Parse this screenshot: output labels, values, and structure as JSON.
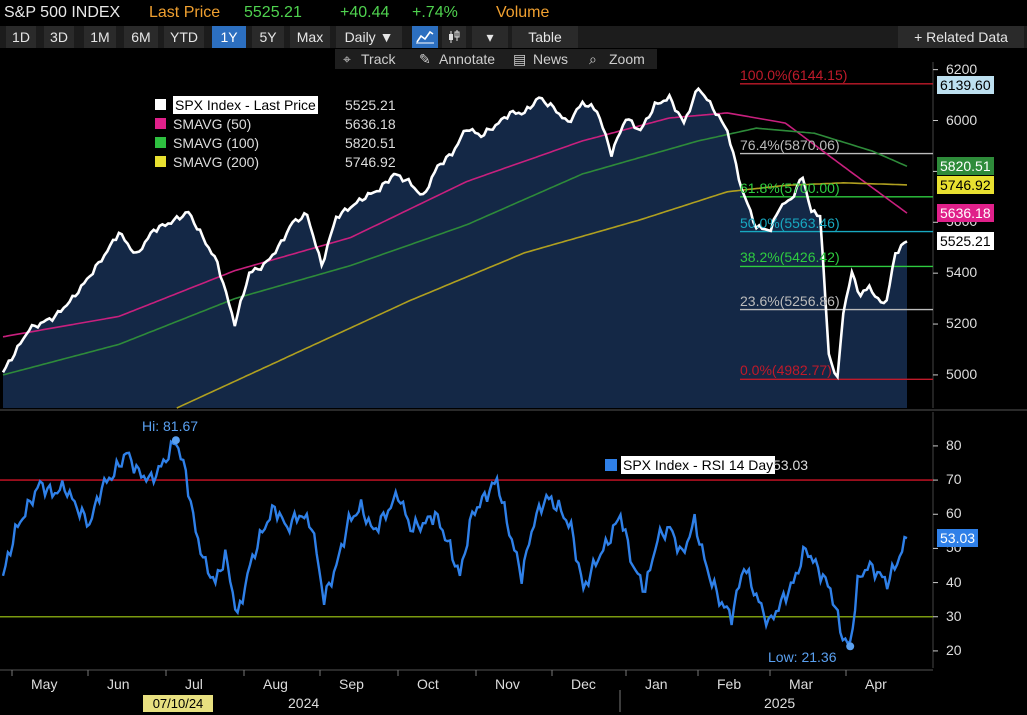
{
  "header": {
    "ticker": "S&P 500 INDEX",
    "last_price_label": "Last Price",
    "last_price": "5525.21",
    "change": "+40.44",
    "change_pct": "+.74%",
    "volume_label": "Volume"
  },
  "range_tabs": [
    "1D",
    "3D",
    "1M",
    "6M",
    "YTD",
    "1Y",
    "5Y",
    "Max"
  ],
  "active_range": "1Y",
  "toolbar": {
    "periodicity": "Daily ▼",
    "table": "Table",
    "related": "+ Related Data",
    "track": "Track",
    "annotate": "Annotate",
    "news": "News",
    "zoom": "Zoom"
  },
  "colors": {
    "price": "#ffffff",
    "area": "#142846",
    "sma50": "#c8207e",
    "sma100": "#2e8b3a",
    "sma200": "#b0a020",
    "rsi": "#2f80e8",
    "fib_red": "#c01a2a",
    "fib_green": "#2ecc40",
    "fib_cyan": "#18a8c0",
    "fib_gray": "#bbbbbb",
    "rsi_70": "#b01020",
    "rsi_30": "#7a9a10"
  },
  "chart_data": [
    {
      "type": "line",
      "title": "S&P 500 INDEX",
      "ylim": [
        4870,
        6230
      ],
      "yticks": [
        5000,
        5200,
        5400,
        5600,
        5800,
        6000,
        6200
      ],
      "series": [
        {
          "name": "SPX Index - Last Price",
          "legend_value": "5525.21",
          "color": "#ffffff",
          "anchors": [
            [
              0,
              5010
            ],
            [
              9,
              5180
            ],
            [
              18,
              5230
            ],
            [
              24,
              5300
            ],
            [
              30,
              5390
            ],
            [
              35,
              5470
            ],
            [
              40,
              5560
            ],
            [
              46,
              5470
            ],
            [
              52,
              5570
            ],
            [
              58,
              5600
            ],
            [
              64,
              5640
            ],
            [
              69,
              5540
            ],
            [
              74,
              5440
            ],
            [
              80,
              5200
            ],
            [
              85,
              5400
            ],
            [
              90,
              5430
            ],
            [
              95,
              5500
            ],
            [
              100,
              5600
            ],
            [
              105,
              5630
            ],
            [
              110,
              5430
            ],
            [
              115,
              5620
            ],
            [
              120,
              5660
            ],
            [
              125,
              5700
            ],
            [
              130,
              5730
            ],
            [
              135,
              5790
            ],
            [
              140,
              5760
            ],
            [
              145,
              5700
            ],
            [
              150,
              5820
            ],
            [
              155,
              5870
            ],
            [
              160,
              5970
            ],
            [
              165,
              5940
            ],
            [
              170,
              5980
            ],
            [
              175,
              6030
            ],
            [
              180,
              6030
            ],
            [
              185,
              6090
            ],
            [
              190,
              6050
            ],
            [
              195,
              5990
            ],
            [
              200,
              6070
            ],
            [
              205,
              6040
            ],
            [
              210,
              5870
            ],
            [
              215,
              6010
            ],
            [
              220,
              5960
            ],
            [
              225,
              6060
            ],
            [
              230,
              6090
            ],
            [
              235,
              5990
            ],
            [
              240,
              6130
            ],
            [
              245,
              6050
            ],
            [
              250,
              5960
            ],
            [
              255,
              5730
            ],
            [
              260,
              5580
            ],
            [
              265,
              5570
            ],
            [
              268,
              5660
            ],
            [
              272,
              5690
            ],
            [
              276,
              5780
            ],
            [
              279,
              5640
            ],
            [
              282,
              5630
            ],
            [
              285,
              5080
            ],
            [
              288,
              4982
            ],
            [
              290,
              5250
            ],
            [
              293,
              5400
            ],
            [
              296,
              5310
            ],
            [
              299,
              5350
            ],
            [
              302,
              5290
            ],
            [
              305,
              5290
            ],
            [
              308,
              5480
            ],
            [
              312,
              5525
            ]
          ]
        },
        {
          "name": "SMAVG (50)",
          "legend_value": "5636.18",
          "color": "#c8207e",
          "anchors": [
            [
              0,
              5150
            ],
            [
              40,
              5230
            ],
            [
              80,
              5410
            ],
            [
              120,
              5540
            ],
            [
              160,
              5760
            ],
            [
              200,
              5920
            ],
            [
              230,
              6010
            ],
            [
              250,
              6030
            ],
            [
              270,
              5990
            ],
            [
              290,
              5820
            ],
            [
              312,
              5636
            ]
          ]
        },
        {
          "name": "SMAVG (100)",
          "legend_value": "5820.51",
          "color": "#2e8b3a",
          "anchors": [
            [
              0,
              5000
            ],
            [
              40,
              5120
            ],
            [
              80,
              5300
            ],
            [
              120,
              5430
            ],
            [
              160,
              5590
            ],
            [
              200,
              5790
            ],
            [
              240,
              5920
            ],
            [
              260,
              5970
            ],
            [
              280,
              5950
            ],
            [
              300,
              5880
            ],
            [
              312,
              5820
            ]
          ]
        },
        {
          "name": "SMAVG (200)",
          "legend_value": "5746.92",
          "color": "#b0a020",
          "anchors": [
            [
              60,
              4870
            ],
            [
              100,
              5080
            ],
            [
              140,
              5290
            ],
            [
              180,
              5480
            ],
            [
              220,
              5610
            ],
            [
              250,
              5720
            ],
            [
              270,
              5745
            ],
            [
              290,
              5755
            ],
            [
              312,
              5747
            ]
          ]
        }
      ],
      "fibonacci": [
        {
          "label": "100.0%(6144.15)",
          "value": 6144.15,
          "color": "#c01a2a"
        },
        {
          "label": "76.4%(5870.06)",
          "value": 5870.06,
          "color": "#bbbbbb"
        },
        {
          "label": "61.8%(5700.00)",
          "value": 5700.0,
          "color": "#2ecc40"
        },
        {
          "label": "50.0%(5563.46)",
          "value": 5563.46,
          "color": "#18a8c0"
        },
        {
          "label": "38.2%(5426.42)",
          "value": 5426.42,
          "color": "#2ecc40"
        },
        {
          "label": "23.6%(5256.86)",
          "value": 5256.86,
          "color": "#bbbbbb"
        },
        {
          "label": "0.0%(4982.77)",
          "value": 4982.77,
          "color": "#c01a2a"
        }
      ],
      "right_badges": [
        {
          "text": "6139.60",
          "value": 6139.6,
          "bg": "#bde0f0",
          "fg": "#000000"
        },
        {
          "text": "5820.51",
          "value": 5820.51,
          "bg": "#2e8b3a",
          "fg": "#ffffff"
        },
        {
          "text": "5746.92",
          "value": 5746.92,
          "bg": "#e8e030",
          "fg": "#000000"
        },
        {
          "text": "5636.18",
          "value": 5636.18,
          "bg": "#e0208a",
          "fg": "#ffffff"
        },
        {
          "text": "5525.21",
          "value": 5525.21,
          "bg": "#ffffff",
          "fg": "#000000"
        }
      ]
    },
    {
      "type": "line",
      "ylim": [
        15,
        87
      ],
      "yticks": [
        20,
        30,
        40,
        50,
        60,
        70,
        80
      ],
      "series": [
        {
          "name": "SPX Index - RSI 14 Day",
          "legend_value": "53.03",
          "color": "#2f80e8",
          "anchors": [
            [
              0,
              42
            ],
            [
              5,
              55
            ],
            [
              10,
              62
            ],
            [
              15,
              69
            ],
            [
              20,
              66
            ],
            [
              25,
              68
            ],
            [
              30,
              62
            ],
            [
              35,
              57
            ],
            [
              40,
              68
            ],
            [
              45,
              72
            ],
            [
              50,
              78
            ],
            [
              55,
              72
            ],
            [
              60,
              70
            ],
            [
              65,
              75
            ],
            [
              70,
              81.67
            ],
            [
              74,
              72
            ],
            [
              78,
              55
            ],
            [
              82,
              45
            ],
            [
              86,
              40
            ],
            [
              90,
              48
            ],
            [
              95,
              30
            ],
            [
              100,
              45
            ],
            [
              105,
              55
            ],
            [
              110,
              62
            ],
            [
              115,
              56
            ],
            [
              120,
              60
            ],
            [
              125,
              57
            ],
            [
              130,
              35
            ],
            [
              135,
              45
            ],
            [
              140,
              58
            ],
            [
              145,
              62
            ],
            [
              150,
              55
            ],
            [
              155,
              60
            ],
            [
              160,
              66
            ],
            [
              165,
              56
            ],
            [
              170,
              57
            ],
            [
              175,
              60
            ],
            [
              180,
              52
            ],
            [
              185,
              42
            ],
            [
              190,
              60
            ],
            [
              195,
              65
            ],
            [
              200,
              70
            ],
            [
              205,
              55
            ],
            [
              210,
              42
            ],
            [
              215,
              58
            ],
            [
              220,
              65
            ],
            [
              225,
              62
            ],
            [
              230,
              56
            ],
            [
              235,
              38
            ],
            [
              240,
              46
            ],
            [
              245,
              52
            ],
            [
              250,
              60
            ],
            [
              255,
              45
            ],
            [
              260,
              38
            ],
            [
              265,
              53
            ],
            [
              270,
              56
            ],
            [
              275,
              48
            ],
            [
              280,
              58
            ],
            [
              285,
              44
            ],
            [
              290,
              35
            ],
            [
              295,
              30
            ],
            [
              300,
              45
            ],
            [
              305,
              36
            ],
            [
              310,
              28
            ],
            [
              315,
              34
            ],
            [
              320,
              40
            ],
            [
              325,
              50
            ],
            [
              330,
              44
            ],
            [
              335,
              38
            ],
            [
              340,
              24
            ],
            [
              343,
              21.36
            ],
            [
              346,
              40
            ],
            [
              350,
              45
            ],
            [
              354,
              43
            ],
            [
              358,
              40
            ],
            [
              362,
              46
            ],
            [
              366,
              53.03
            ]
          ]
        }
      ],
      "reference_lines": [
        {
          "value": 70,
          "color": "#b01020"
        },
        {
          "value": 30,
          "color": "#7a9a10"
        }
      ],
      "annotations": [
        {
          "text": "Hi: 81.67",
          "x": 70,
          "value": 81.67
        },
        {
          "text": "Low: 21.36",
          "x": 343,
          "value": 21.36
        }
      ],
      "badge": {
        "text": "53.03",
        "value": 53.03,
        "bg": "#2f80e8",
        "fg": "#ffffff"
      },
      "x_months": [
        "May",
        "Jun",
        "Jul",
        "Aug",
        "Sep",
        "Oct",
        "Nov",
        "Dec",
        "Jan",
        "Feb",
        "Mar",
        "Apr"
      ],
      "x_years": [
        "2024",
        "2025"
      ],
      "cursor_date": "07/10/24"
    }
  ]
}
